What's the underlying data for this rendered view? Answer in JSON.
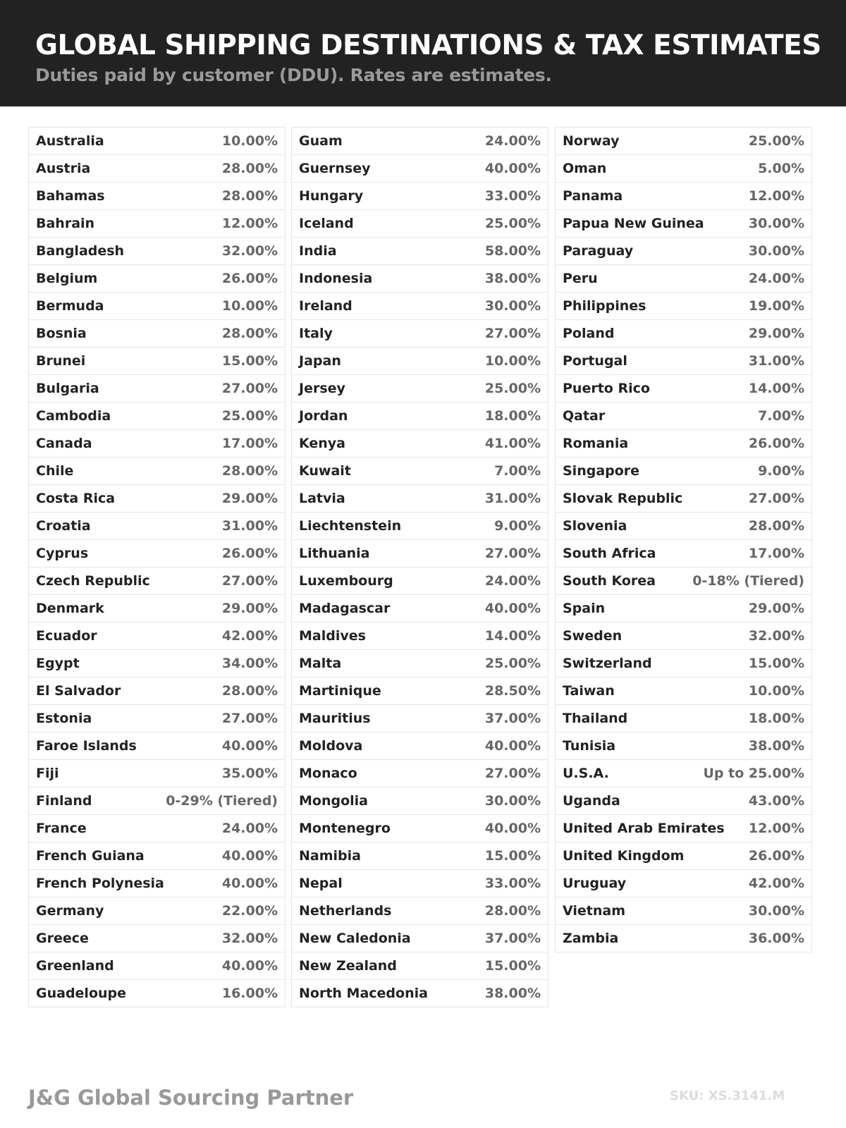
{
  "header": {
    "title": "GLOBAL SHIPPING DESTINATIONS & TAX ESTIMATES",
    "subtitle": "Duties paid by customer (DDU). Rates are estimates."
  },
  "columns": [
    [
      {
        "country": "Australia",
        "rate": "10.00%"
      },
      {
        "country": "Austria",
        "rate": "28.00%"
      },
      {
        "country": "Bahamas",
        "rate": "28.00%"
      },
      {
        "country": "Bahrain",
        "rate": "12.00%"
      },
      {
        "country": "Bangladesh",
        "rate": "32.00%"
      },
      {
        "country": "Belgium",
        "rate": "26.00%"
      },
      {
        "country": "Bermuda",
        "rate": "10.00%"
      },
      {
        "country": "Bosnia",
        "rate": "28.00%"
      },
      {
        "country": "Brunei",
        "rate": "15.00%"
      },
      {
        "country": "Bulgaria",
        "rate": "27.00%"
      },
      {
        "country": "Cambodia",
        "rate": "25.00%"
      },
      {
        "country": "Canada",
        "rate": "17.00%"
      },
      {
        "country": "Chile",
        "rate": "28.00%"
      },
      {
        "country": "Costa Rica",
        "rate": "29.00%"
      },
      {
        "country": "Croatia",
        "rate": "31.00%"
      },
      {
        "country": "Cyprus",
        "rate": "26.00%"
      },
      {
        "country": "Czech Republic",
        "rate": "27.00%"
      },
      {
        "country": "Denmark",
        "rate": "29.00%"
      },
      {
        "country": "Ecuador",
        "rate": "42.00%"
      },
      {
        "country": "Egypt",
        "rate": "34.00%"
      },
      {
        "country": "El Salvador",
        "rate": "28.00%"
      },
      {
        "country": "Estonia",
        "rate": "27.00%"
      },
      {
        "country": "Faroe Islands",
        "rate": "40.00%"
      },
      {
        "country": "Fiji",
        "rate": "35.00%"
      },
      {
        "country": "Finland",
        "rate": "0-29% (Tiered)"
      },
      {
        "country": "France",
        "rate": "24.00%"
      },
      {
        "country": "French Guiana",
        "rate": "40.00%"
      },
      {
        "country": "French Polynesia",
        "rate": "40.00%"
      },
      {
        "country": "Germany",
        "rate": "22.00%"
      },
      {
        "country": "Greece",
        "rate": "32.00%"
      },
      {
        "country": "Greenland",
        "rate": "40.00%"
      },
      {
        "country": "Guadeloupe",
        "rate": "16.00%"
      }
    ],
    [
      {
        "country": "Guam",
        "rate": "24.00%"
      },
      {
        "country": "Guernsey",
        "rate": "40.00%"
      },
      {
        "country": "Hungary",
        "rate": "33.00%"
      },
      {
        "country": "Iceland",
        "rate": "25.00%"
      },
      {
        "country": "India",
        "rate": "58.00%"
      },
      {
        "country": "Indonesia",
        "rate": "38.00%"
      },
      {
        "country": "Ireland",
        "rate": "30.00%"
      },
      {
        "country": "Italy",
        "rate": "27.00%"
      },
      {
        "country": "Japan",
        "rate": "10.00%"
      },
      {
        "country": "Jersey",
        "rate": "25.00%"
      },
      {
        "country": "Jordan",
        "rate": "18.00%"
      },
      {
        "country": "Kenya",
        "rate": "41.00%"
      },
      {
        "country": "Kuwait",
        "rate": "7.00%"
      },
      {
        "country": "Latvia",
        "rate": "31.00%"
      },
      {
        "country": "Liechtenstein",
        "rate": "9.00%"
      },
      {
        "country": "Lithuania",
        "rate": "27.00%"
      },
      {
        "country": "Luxembourg",
        "rate": "24.00%"
      },
      {
        "country": "Madagascar",
        "rate": "40.00%"
      },
      {
        "country": "Maldives",
        "rate": "14.00%"
      },
      {
        "country": "Malta",
        "rate": "25.00%"
      },
      {
        "country": "Martinique",
        "rate": "28.50%"
      },
      {
        "country": "Mauritius",
        "rate": "37.00%"
      },
      {
        "country": "Moldova",
        "rate": "40.00%"
      },
      {
        "country": "Monaco",
        "rate": "27.00%"
      },
      {
        "country": "Mongolia",
        "rate": "30.00%"
      },
      {
        "country": "Montenegro",
        "rate": "40.00%"
      },
      {
        "country": "Namibia",
        "rate": "15.00%"
      },
      {
        "country": "Nepal",
        "rate": "33.00%"
      },
      {
        "country": "Netherlands",
        "rate": "28.00%"
      },
      {
        "country": "New Caledonia",
        "rate": "37.00%"
      },
      {
        "country": "New Zealand",
        "rate": "15.00%"
      },
      {
        "country": "North Macedonia",
        "rate": "38.00%"
      }
    ],
    [
      {
        "country": "Norway",
        "rate": "25.00%"
      },
      {
        "country": "Oman",
        "rate": "5.00%"
      },
      {
        "country": "Panama",
        "rate": "12.00%"
      },
      {
        "country": "Papua New Guinea",
        "rate": "30.00%"
      },
      {
        "country": "Paraguay",
        "rate": "30.00%"
      },
      {
        "country": "Peru",
        "rate": "24.00%"
      },
      {
        "country": "Philippines",
        "rate": "19.00%"
      },
      {
        "country": "Poland",
        "rate": "29.00%"
      },
      {
        "country": "Portugal",
        "rate": "31.00%"
      },
      {
        "country": "Puerto Rico",
        "rate": "14.00%"
      },
      {
        "country": "Qatar",
        "rate": "7.00%"
      },
      {
        "country": "Romania",
        "rate": "26.00%"
      },
      {
        "country": "Singapore",
        "rate": "9.00%"
      },
      {
        "country": "Slovak Republic",
        "rate": "27.00%"
      },
      {
        "country": "Slovenia",
        "rate": "28.00%"
      },
      {
        "country": "South Africa",
        "rate": "17.00%"
      },
      {
        "country": "South Korea",
        "rate": "0-18% (Tiered)"
      },
      {
        "country": "Spain",
        "rate": "29.00%"
      },
      {
        "country": "Sweden",
        "rate": "32.00%"
      },
      {
        "country": "Switzerland",
        "rate": "15.00%"
      },
      {
        "country": "Taiwan",
        "rate": "10.00%"
      },
      {
        "country": "Thailand",
        "rate": "18.00%"
      },
      {
        "country": "Tunisia",
        "rate": "38.00%"
      },
      {
        "country": "U.S.A.",
        "rate": "Up to 25.00%"
      },
      {
        "country": "Uganda",
        "rate": "43.00%"
      },
      {
        "country": "United Arab Emirates",
        "rate": "12.00%"
      },
      {
        "country": "United Kingdom",
        "rate": "26.00%"
      },
      {
        "country": "Uruguay",
        "rate": "42.00%"
      },
      {
        "country": "Vietnam",
        "rate": "30.00%"
      },
      {
        "country": "Zambia",
        "rate": "36.00%"
      }
    ]
  ],
  "footer": {
    "brand": "J&G Global Sourcing Partner",
    "sku": "SKU: XS.3141.M"
  },
  "colors": {
    "header_bg": "#222222",
    "country_text": "#222222",
    "rate_text": "#666666",
    "border": "#e6e6e6"
  }
}
